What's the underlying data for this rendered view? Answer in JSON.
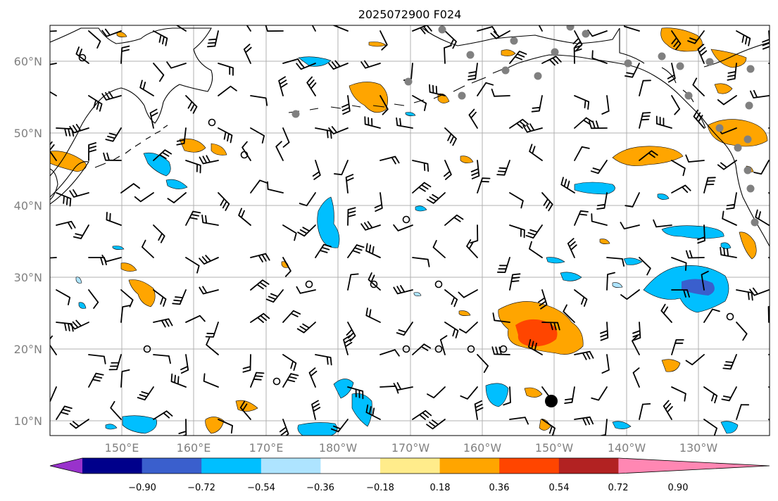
{
  "title": "2025072900 F024",
  "lat_labels": [
    "60°N",
    "50°N",
    "40°N",
    "30°N",
    "20°N",
    "10°N"
  ],
  "lon_labels": [
    "150°E",
    "160°E",
    "170°E",
    "180°W",
    "170°W",
    "160°W",
    "150°W",
    "140°W",
    "130°W"
  ],
  "colorbar": {
    "colors": [
      "#9932cc",
      "#00008b",
      "#3a5fcd",
      "#00bfff",
      "#aee4ff",
      "#ffffff",
      "#ffec8b",
      "#ffa500",
      "#ff4500",
      "#b22222",
      "#ff87b3"
    ],
    "tick_labels": [
      "−0.90",
      "−0.72",
      "−0.54",
      "−0.36",
      "−0.18",
      "0.18",
      "0.36",
      "0.54",
      "0.72",
      "0.90"
    ]
  },
  "colors": {
    "blue_light": "#00bfff",
    "blue_mid": "#3a5fcd",
    "orange": "#ffa500",
    "red_orange": "#ff4500",
    "gridline": "#b0b0b0",
    "station_marker": "#808080"
  }
}
